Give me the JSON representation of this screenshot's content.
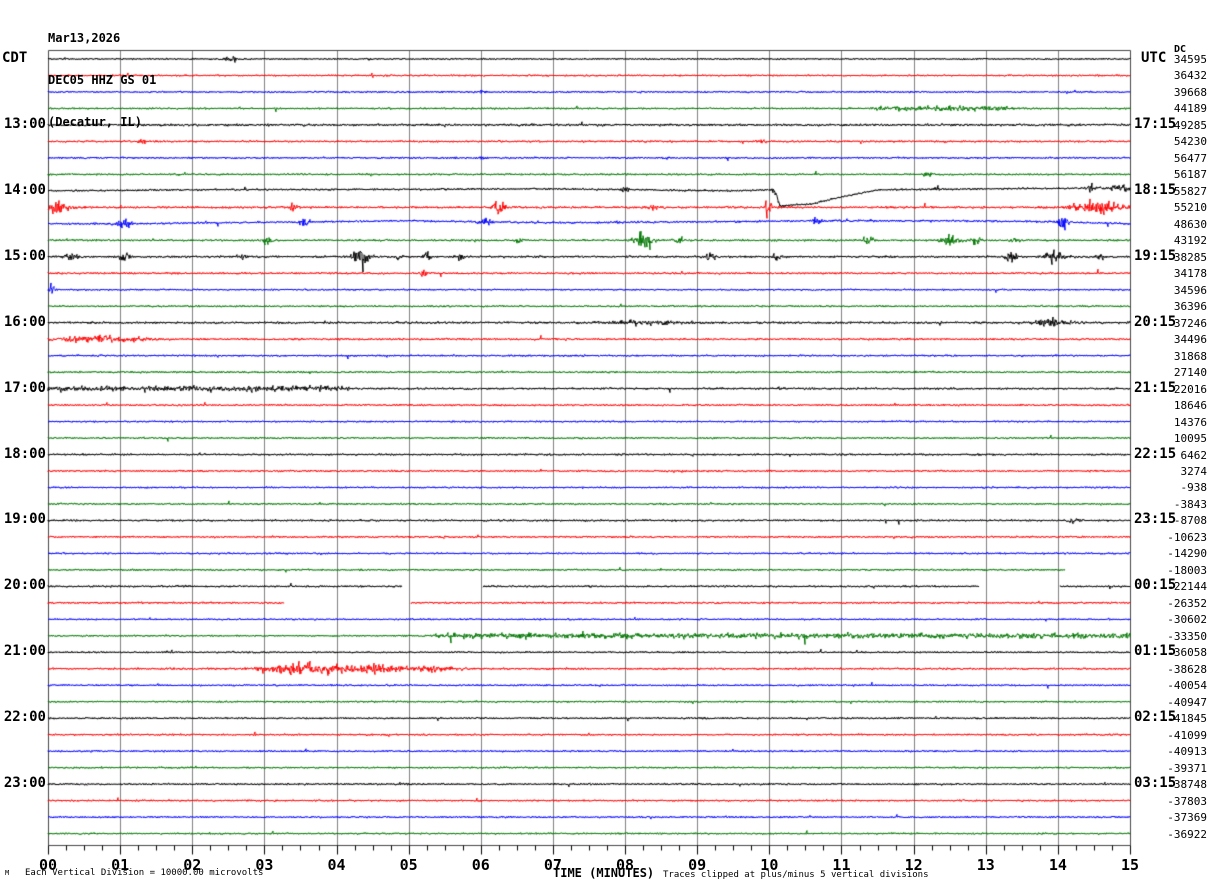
{
  "header": {
    "date": "Mar13,2026",
    "station": "DEC05 HHZ GS 01",
    "location": "(Decatur, IL)",
    "left_timezone": "CDT",
    "right_timezone": "UTC",
    "dc_column_header": "DC"
  },
  "footer": {
    "left_note": "Each Vertical Division = 10000.00 microvolts",
    "axis_title": "TIME (MINUTES)",
    "right_note": "Traces clipped at plus/minus 5 vertical divisions",
    "watermark": "M"
  },
  "chart_data": {
    "type": "line",
    "subtype": "helicorder-seismogram",
    "title": "Mar13,2026 DEC05 HHZ GS 01 (Decatur, IL)",
    "xlabel": "TIME (MINUTES)",
    "x_range_minutes": [
      0,
      15
    ],
    "x_tick_labels": [
      "00",
      "01",
      "02",
      "03",
      "04",
      "05",
      "06",
      "07",
      "08",
      "09",
      "10",
      "11",
      "12",
      "13",
      "14",
      "15"
    ],
    "minor_ticks_per_minute": 4,
    "minutes_per_line": 15,
    "lines_per_hour": 4,
    "microvolts_per_division": "10000.00",
    "clip_divisions": 5,
    "grid": "vertical-only",
    "colors": {
      "black": "#000000",
      "red": "#ff0000",
      "blue": "#0000ff",
      "green": "#007700",
      "grid": "#7f7f7f",
      "border": "#444444"
    },
    "row_color_cycle": [
      "black",
      "red",
      "blue",
      "green"
    ],
    "left_hour_labels": [
      {
        "row": 4,
        "text": "13:00"
      },
      {
        "row": 8,
        "text": "14:00"
      },
      {
        "row": 12,
        "text": "15:00"
      },
      {
        "row": 16,
        "text": "16:00"
      },
      {
        "row": 20,
        "text": "17:00"
      },
      {
        "row": 24,
        "text": "18:00"
      },
      {
        "row": 28,
        "text": "19:00"
      },
      {
        "row": 32,
        "text": "20:00"
      },
      {
        "row": 36,
        "text": "21:00"
      },
      {
        "row": 40,
        "text": "22:00"
      },
      {
        "row": 44,
        "text": "23:00"
      }
    ],
    "right_hour_labels": [
      {
        "row": 4,
        "text": "17:15"
      },
      {
        "row": 8,
        "text": "18:15"
      },
      {
        "row": 12,
        "text": "19:15"
      },
      {
        "row": 16,
        "text": "20:15"
      },
      {
        "row": 20,
        "text": "21:15"
      },
      {
        "row": 24,
        "text": "22:15"
      },
      {
        "row": 28,
        "text": "23:15"
      },
      {
        "row": 32,
        "text": "00:15"
      },
      {
        "row": 36,
        "text": "01:15"
      },
      {
        "row": 40,
        "text": "02:15"
      },
      {
        "row": 44,
        "text": "03:15"
      }
    ],
    "rows": [
      {
        "c": "black",
        "dc": "34595",
        "n": 1.2,
        "ev": [
          [
            2.55,
            0.12,
            4
          ]
        ]
      },
      {
        "c": "red",
        "dc": "36432",
        "n": 1.3
      },
      {
        "c": "blue",
        "dc": "39668",
        "n": 1.3,
        "ev": [
          [
            6.0,
            0.06,
            3
          ]
        ]
      },
      {
        "c": "green",
        "dc": "44189",
        "n": 1.4,
        "ns": [
          [
            11.4,
            13.4,
            2.5
          ]
        ]
      },
      {
        "c": "black",
        "dc": "49285",
        "n": 1.8
      },
      {
        "c": "red",
        "dc": "54230",
        "n": 1.5,
        "ev": [
          [
            1.3,
            0.05,
            4
          ],
          [
            9.9,
            0.05,
            4
          ]
        ]
      },
      {
        "c": "blue",
        "dc": "56477",
        "n": 1.4,
        "ev": [
          [
            6.0,
            0.05,
            4
          ]
        ]
      },
      {
        "c": "green",
        "dc": "56187",
        "n": 1.4,
        "ev": [
          [
            12.2,
            0.05,
            4
          ]
        ]
      },
      {
        "c": "black",
        "dc": "55827",
        "n": 1.5,
        "dr": [
          [
            0,
            0
          ],
          [
            2,
            1
          ],
          [
            7,
            2
          ],
          [
            9.5,
            0
          ],
          [
            10.05,
            1
          ],
          [
            10.15,
            -15
          ],
          [
            10.6,
            -13
          ],
          [
            11,
            -6
          ],
          [
            11.5,
            1
          ],
          [
            13,
            2
          ],
          [
            15,
            3
          ]
        ],
        "ev": [
          [
            8.0,
            0.06,
            5
          ],
          [
            10.1,
            0.05,
            6
          ],
          [
            12.3,
            0.05,
            5
          ],
          [
            14.45,
            0.05,
            8
          ],
          [
            14.9,
            0.3,
            4
          ]
        ]
      },
      {
        "c": "red",
        "dc": "55210",
        "n": 1.7,
        "ev": [
          [
            0.12,
            0.18,
            9
          ],
          [
            3.4,
            0.07,
            5
          ],
          [
            6.25,
            0.09,
            10
          ],
          [
            8.4,
            0.07,
            5
          ],
          [
            9.97,
            0.05,
            16
          ],
          [
            14.55,
            0.33,
            9
          ]
        ]
      },
      {
        "c": "blue",
        "dc": "48630",
        "n": 1.6,
        "dr": [
          [
            0,
            0
          ],
          [
            1,
            0
          ],
          [
            5,
            3
          ],
          [
            7,
            1
          ],
          [
            9,
            2
          ],
          [
            11,
            3
          ],
          [
            12.5,
            3
          ],
          [
            14,
            2
          ],
          [
            15,
            0
          ]
        ],
        "ev": [
          [
            1.05,
            0.09,
            7
          ],
          [
            3.55,
            0.07,
            10
          ],
          [
            6.05,
            0.09,
            6
          ],
          [
            10.65,
            0.07,
            4
          ],
          [
            14.07,
            0.07,
            13
          ]
        ]
      },
      {
        "c": "green",
        "dc": "43192",
        "n": 1.5,
        "ev": [
          [
            3.05,
            0.06,
            6
          ],
          [
            6.55,
            0.06,
            5
          ],
          [
            8.25,
            0.12,
            11
          ],
          [
            8.75,
            0.06,
            6
          ],
          [
            11.35,
            0.08,
            6
          ],
          [
            12.5,
            0.12,
            9
          ],
          [
            12.85,
            0.08,
            7
          ],
          [
            13.4,
            0.06,
            5
          ]
        ]
      },
      {
        "c": "black",
        "dc": "38285",
        "n": 1.6,
        "ev": [
          [
            0.35,
            0.09,
            7
          ],
          [
            1.07,
            0.07,
            8
          ],
          [
            2.7,
            0.07,
            5
          ],
          [
            4.35,
            0.1,
            20
          ],
          [
            4.85,
            0.06,
            5
          ],
          [
            5.25,
            0.06,
            6
          ],
          [
            5.7,
            0.06,
            4
          ],
          [
            9.2,
            0.07,
            6
          ],
          [
            10.1,
            0.06,
            5
          ],
          [
            13.35,
            0.08,
            10
          ],
          [
            13.95,
            0.15,
            10
          ],
          [
            14.6,
            0.06,
            4
          ]
        ]
      },
      {
        "c": "red",
        "dc": "34178",
        "n": 1.5,
        "ev": [
          [
            5.2,
            0.05,
            6
          ]
        ]
      },
      {
        "c": "blue",
        "dc": "34596",
        "n": 1.2,
        "ev": [
          [
            0.06,
            0.04,
            10
          ]
        ]
      },
      {
        "c": "green",
        "dc": "36396",
        "n": 1.3
      },
      {
        "c": "black",
        "dc": "37246",
        "n": 1.7,
        "ev": [
          [
            8.3,
            0.5,
            3
          ],
          [
            13.9,
            0.25,
            6
          ]
        ]
      },
      {
        "c": "red",
        "dc": "34496",
        "n": 1.5,
        "ev": [
          [
            0.75,
            0.6,
            5
          ]
        ]
      },
      {
        "c": "blue",
        "dc": "31868",
        "n": 1.4
      },
      {
        "c": "green",
        "dc": "27140",
        "n": 1.4
      },
      {
        "c": "black",
        "dc": "22016",
        "n": 1.6,
        "ns": [
          [
            0,
            4.2,
            2.8
          ]
        ]
      },
      {
        "c": "red",
        "dc": "18646",
        "n": 1.4
      },
      {
        "c": "blue",
        "dc": "14376",
        "n": 1.3
      },
      {
        "c": "green",
        "dc": "10095",
        "n": 1.3
      },
      {
        "c": "black",
        "dc": "6462",
        "n": 1.5
      },
      {
        "c": "red",
        "dc": "3274",
        "n": 1.4
      },
      {
        "c": "blue",
        "dc": "-938",
        "n": 1.3
      },
      {
        "c": "green",
        "dc": "-3843",
        "n": 1.3
      },
      {
        "c": "black",
        "dc": "-8708",
        "n": 1.5,
        "ev": [
          [
            14.2,
            0.08,
            4
          ]
        ]
      },
      {
        "c": "red",
        "dc": "-10623",
        "n": 1.4
      },
      {
        "c": "blue",
        "dc": "-14290",
        "n": 1.3
      },
      {
        "c": "green",
        "dc": "-18003",
        "n": 1.3,
        "gaps": [
          [
            14.1,
            15.01
          ]
        ]
      },
      {
        "c": "black",
        "dc": "-22144",
        "n": 1.5,
        "gaps": [
          [
            4.92,
            6.02
          ],
          [
            12.92,
            14.02
          ]
        ]
      },
      {
        "c": "red",
        "dc": "-26352",
        "n": 1.4,
        "gaps": [
          [
            3.28,
            5.02
          ]
        ]
      },
      {
        "c": "blue",
        "dc": "-30602",
        "n": 1.3
      },
      {
        "c": "green",
        "dc": "-33350",
        "n": 1.3,
        "ns": [
          [
            5.3,
            15,
            3
          ]
        ]
      },
      {
        "c": "black",
        "dc": "-36058",
        "n": 1.3
      },
      {
        "c": "red",
        "dc": "-38628",
        "n": 1.5,
        "ev": [
          [
            3.5,
            0.5,
            9
          ],
          [
            4.5,
            0.45,
            6
          ],
          [
            5.4,
            0.35,
            4
          ]
        ]
      },
      {
        "c": "blue",
        "dc": "-40054",
        "n": 1.3
      },
      {
        "c": "green",
        "dc": "-40947",
        "n": 1.3
      },
      {
        "c": "black",
        "dc": "-41845",
        "n": 1.4
      },
      {
        "c": "red",
        "dc": "-41099",
        "n": 1.4
      },
      {
        "c": "blue",
        "dc": "-40913",
        "n": 1.3
      },
      {
        "c": "green",
        "dc": "-39371",
        "n": 1.3
      },
      {
        "c": "black",
        "dc": "-38748",
        "n": 1.4
      },
      {
        "c": "red",
        "dc": "-37803",
        "n": 1.4
      },
      {
        "c": "blue",
        "dc": "-37369",
        "n": 1.3
      },
      {
        "c": "green",
        "dc": "-36922",
        "n": 1.3
      }
    ]
  }
}
